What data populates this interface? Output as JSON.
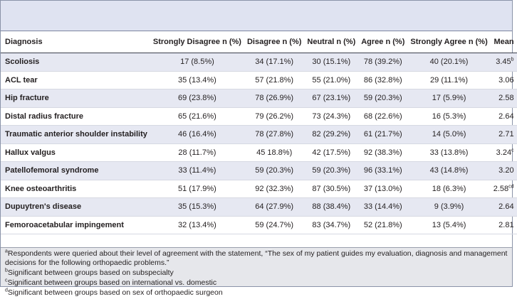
{
  "table": {
    "headers": {
      "diagnosis": "Diagnosis",
      "strongly_disagree": "Strongly Disagree n (%)",
      "disagree": "Disagree n (%)",
      "neutral": "Neutral n (%)",
      "agree": "Agree n (%)",
      "strongly_agree": "Strongly Agree n (%)",
      "mean": "Mean"
    },
    "rows": [
      {
        "diagnosis": "Scoliosis",
        "sd": "17 (8.5%)",
        "d": "34 (17.1%)",
        "n": "30 (15.1%)",
        "a": "78 (39.2%)",
        "sa": "40 (20.1%)",
        "mean": "3.45",
        "mark": "b"
      },
      {
        "diagnosis": "ACL tear",
        "sd": "35 (13.4%)",
        "d": "57 (21.8%)",
        "n": "55 (21.0%)",
        "a": "86 (32.8%)",
        "sa": "29 (11.1%)",
        "mean": "3.06",
        "mark": ""
      },
      {
        "diagnosis": "Hip fracture",
        "sd": "69 (23.8%)",
        "d": "78 (26.9%)",
        "n": "67 (23.1%)",
        "a": "59 (20.3%)",
        "sa": "17 (5.9%)",
        "mean": "2.58",
        "mark": ""
      },
      {
        "diagnosis": "Distal radius fracture",
        "sd": "65 (21.6%)",
        "d": "79 (26.2%)",
        "n": "73 (24.3%)",
        "a": "68 (22.6%)",
        "sa": "16 (5.3%)",
        "mean": "2.64",
        "mark": ""
      },
      {
        "diagnosis": "Traumatic anterior shoulder instability",
        "sd": "46 (16.4%)",
        "d": "78 (27.8%)",
        "n": "82 (29.2%)",
        "a": "61 (21.7%)",
        "sa": "14 (5.0%)",
        "mean": "2.71",
        "mark": ""
      },
      {
        "diagnosis": "Hallux valgus",
        "sd": "28 (11.7%)",
        "d": "45 18.8%)",
        "n": "42 (17.5%)",
        "a": "92 (38.3%)",
        "sa": "33 (13.8%)",
        "mean": "3.24",
        "mark": "c"
      },
      {
        "diagnosis": "Patellofemoral syndrome",
        "sd": "33 (11.4%)",
        "d": "59 (20.3%)",
        "n": "59 (20.3%)",
        "a": "96 (33.1%)",
        "sa": "43 (14.8%)",
        "mean": "3.20",
        "mark": ""
      },
      {
        "diagnosis": "Knee osteoarthritis",
        "sd": "51 (17.9%)",
        "d": "92 (32.3%)",
        "n": "87 (30.5%)",
        "a": "37 (13.0%)",
        "sa": "18 (6.3%)",
        "mean": "2.58",
        "mark": "cd"
      },
      {
        "diagnosis": "Dupuytren's disease",
        "sd": "35 (15.3%)",
        "d": "64 (27.9%)",
        "n": "88 (38.4%)",
        "a": "33 (14.4%)",
        "sa": "9 (3.9%)",
        "mean": "2.64",
        "mark": ""
      },
      {
        "diagnosis": "Femoroacetabular impingement",
        "sd": "32 (13.4%)",
        "d": "59 (24.7%)",
        "n": "83 (34.7%)",
        "a": "52 (21.8%)",
        "sa": "13 (5.4%)",
        "mean": "2.81",
        "mark": ""
      }
    ]
  },
  "footnotes": [
    {
      "mark": "a",
      "text": "Respondents were queried about their level of agreement with the statement, “The sex of my patient guides my evaluation, diagnosis and management decisions for the following orthopaedic problems.”"
    },
    {
      "mark": "b",
      "text": "Significant between groups based on subspecialty"
    },
    {
      "mark": "c",
      "text": "Significant between groups based on international vs. domestic"
    },
    {
      "mark": "d",
      "text": "Significant between groups based on sex of orthopaedic surgeon"
    }
  ]
}
